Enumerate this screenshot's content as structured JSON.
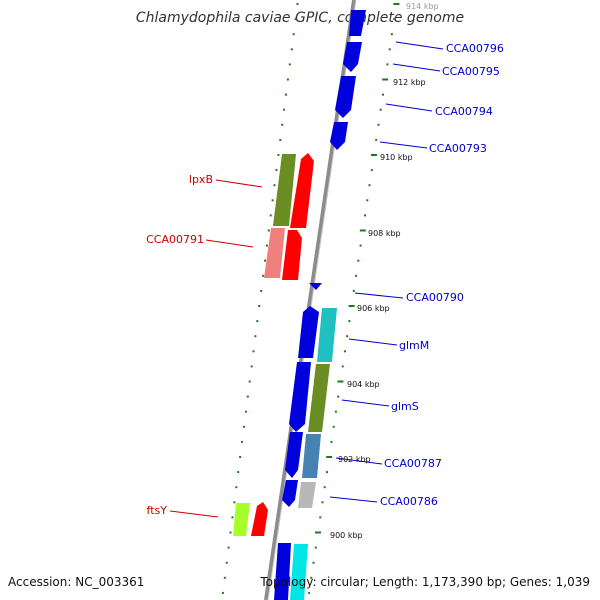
{
  "title": "Chlamydophila caviae GPIC, complete genome",
  "accession_text": "Accession: NC_003361",
  "topology_text": "Topology: circular; Length: 1,173,390 bp; Genes: 1,039",
  "colors": {
    "backbone": "#8c8c8c",
    "tick": "#1e7a1e",
    "forward_label": "#0000cc",
    "reverse_label": "#cc0000"
  },
  "scale_labels": [
    "914 kbp",
    "912 kbp",
    "910 kbp",
    "908 kbp",
    "906 kbp",
    "904 kbp",
    "902 kbp",
    "900 kbp"
  ],
  "genes_labeled": [
    "CCA00796",
    "CCA00795",
    "CCA00794",
    "CCA00793",
    "lpxB",
    "CCA00791",
    "CCA00790",
    "glmM",
    "glmS",
    "CCA00787",
    "CCA00786",
    "ftsY"
  ]
}
